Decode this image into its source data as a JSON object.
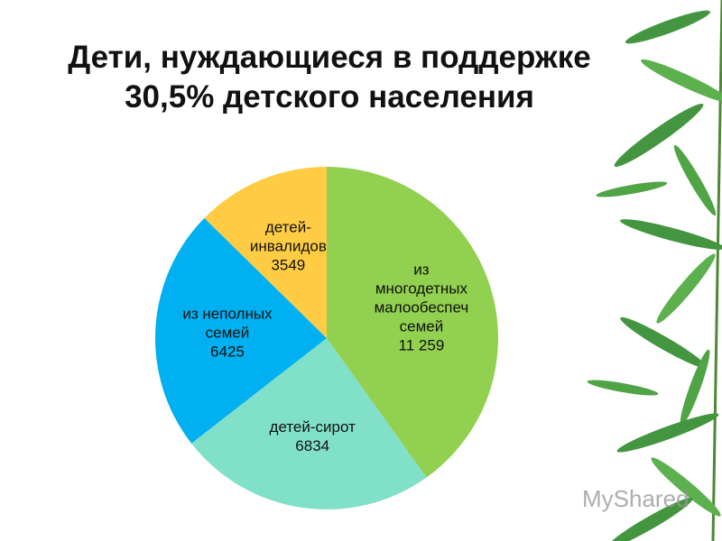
{
  "chart_data": {
    "type": "pie",
    "title": "Дети, нуждающиеся в поддержке\n30,5% детского населения",
    "categories": [
      "из\nмногодетных\nмалообеспеч\nсемей",
      "детей-сирот",
      "из неполных\nсемей",
      "детей-\nинвалидов"
    ],
    "values": [
      11259,
      6834,
      6425,
      3549
    ],
    "value_labels": [
      "11 259",
      "6834",
      "6425",
      "3549"
    ],
    "colors": [
      "#92d050",
      "#80e0c8",
      "#00b0f0",
      "#ffcc44"
    ],
    "watermark": "MyShared"
  }
}
